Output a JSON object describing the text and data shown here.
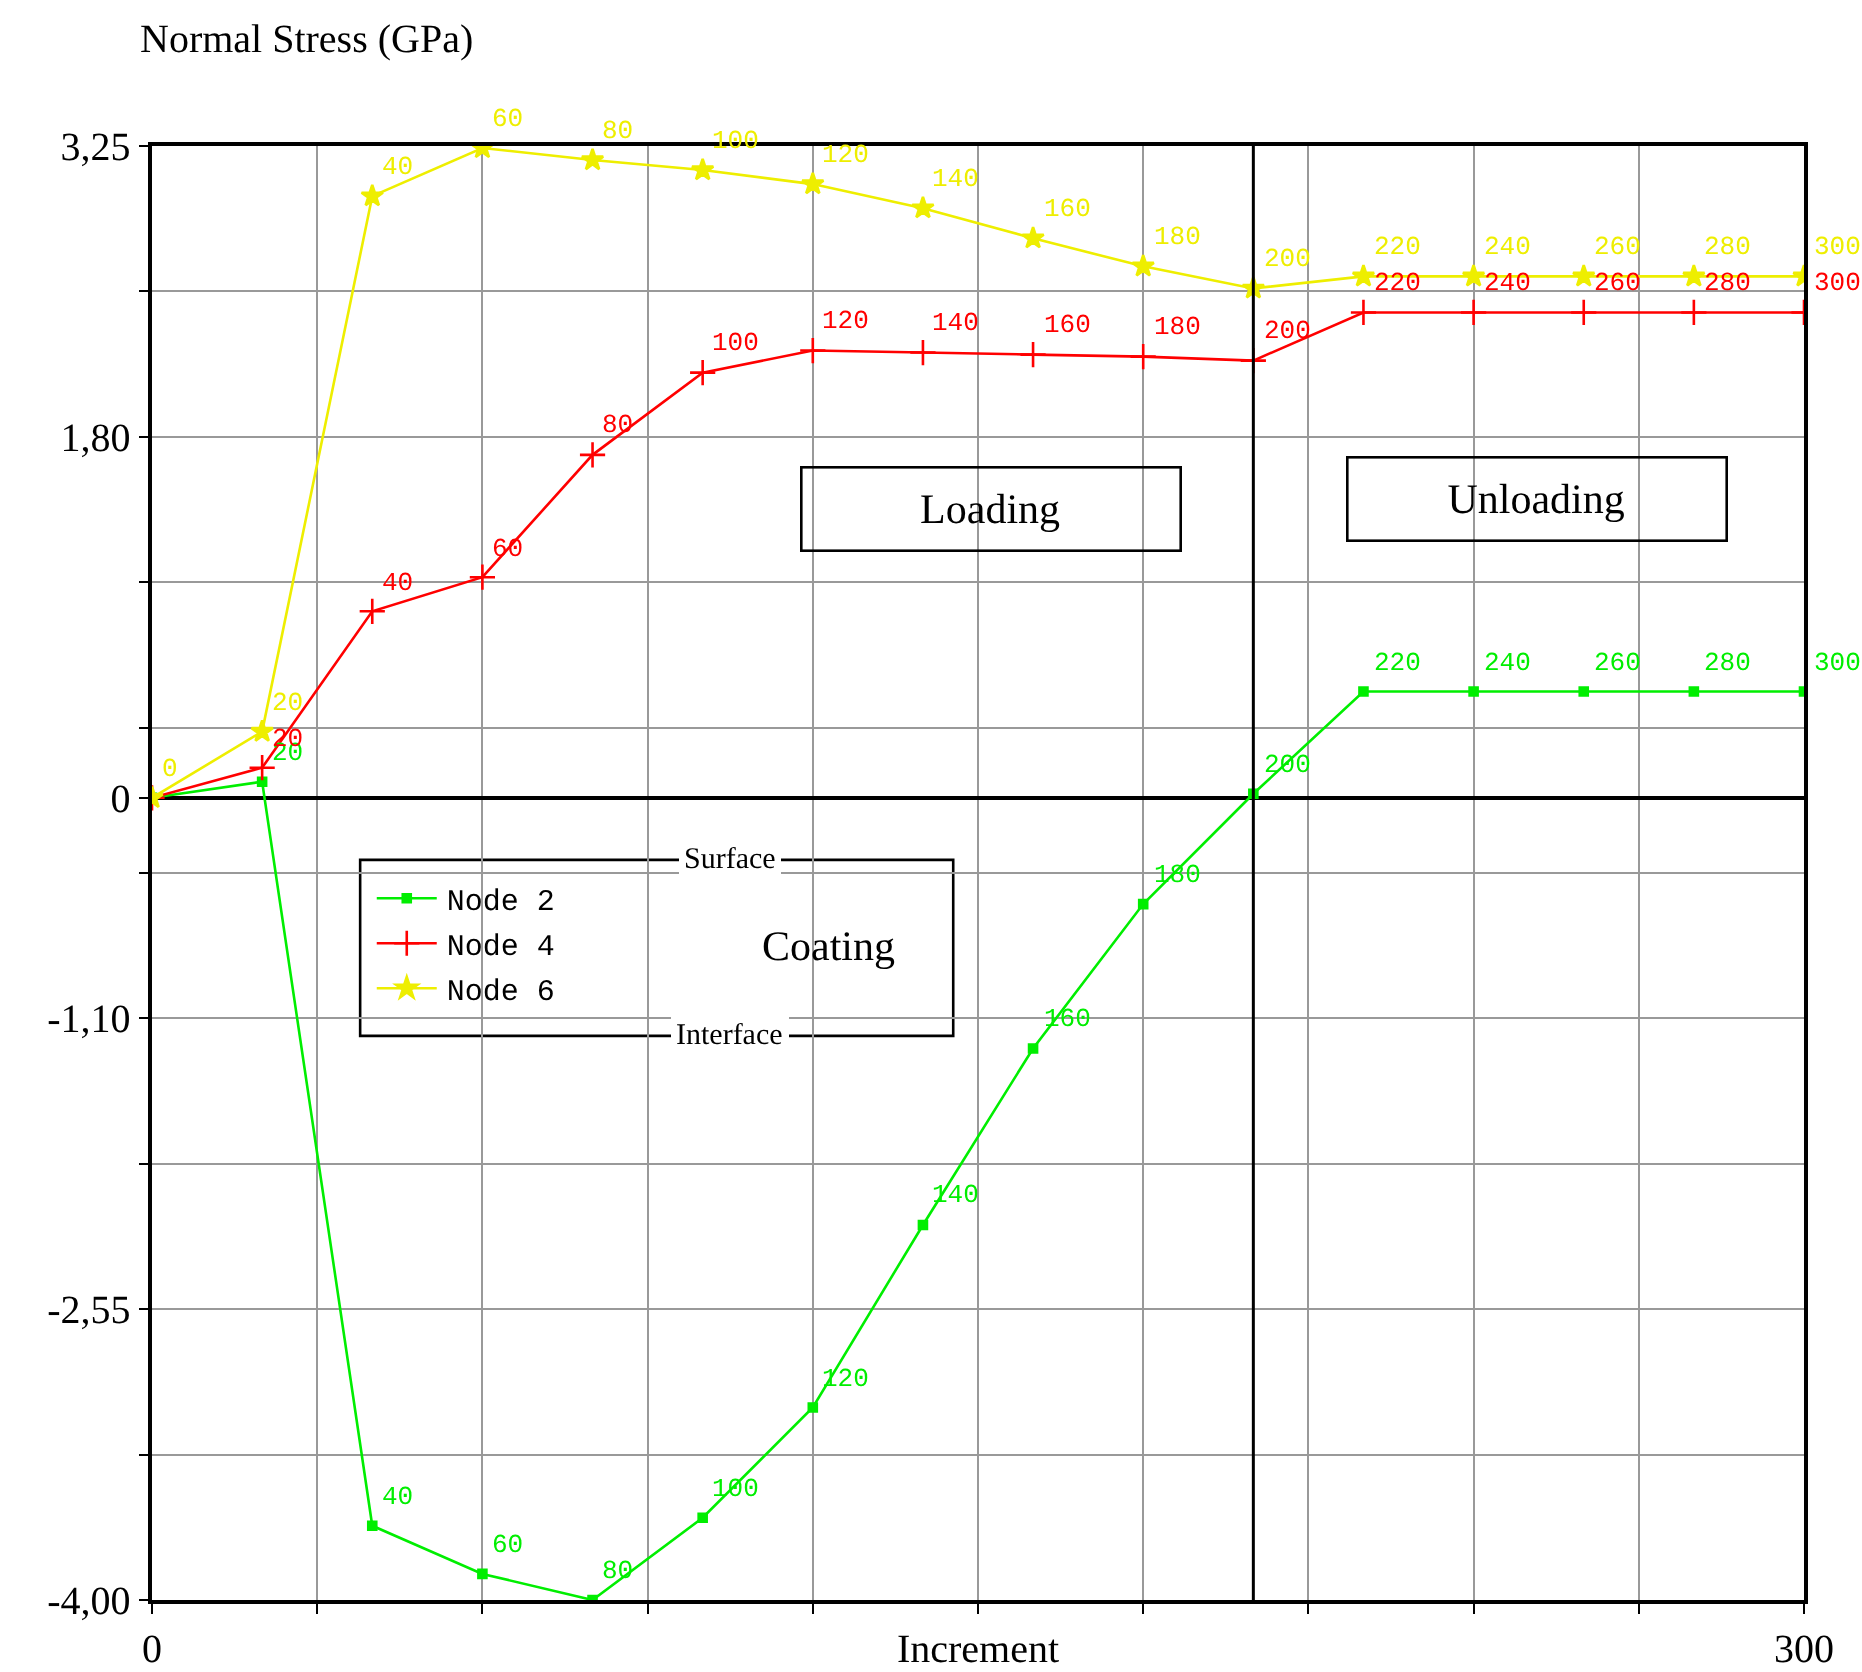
{
  "chart_data": {
    "type": "line",
    "ylabel": "Normal Stress (GPa)",
    "xlabel": "Increment",
    "x": [
      0,
      20,
      40,
      60,
      80,
      100,
      120,
      140,
      160,
      180,
      200,
      220,
      240,
      260,
      280,
      300
    ],
    "series": [
      {
        "name": "Node 2",
        "color": "#00ee00",
        "marker": "square",
        "values": [
          0,
          0.08,
          -3.63,
          -3.87,
          -4.0,
          -3.59,
          -3.04,
          -2.13,
          -1.25,
          -0.53,
          0.02,
          0.53,
          0.53,
          0.53,
          0.53,
          0.53
        ]
      },
      {
        "name": "Node 4",
        "color": "#ff0000",
        "marker": "cross",
        "values": [
          0,
          0.15,
          0.93,
          1.1,
          1.71,
          2.12,
          2.23,
          2.22,
          2.21,
          2.2,
          2.18,
          2.42,
          2.42,
          2.42,
          2.42,
          2.42
        ]
      },
      {
        "name": "Node 6",
        "color": "#eeee00",
        "marker": "star",
        "values": [
          0,
          0.33,
          3.0,
          3.24,
          3.18,
          3.13,
          3.06,
          2.94,
          2.79,
          2.65,
          2.54,
          2.6,
          2.6,
          2.6,
          2.6,
          2.6
        ]
      }
    ],
    "xlim": [
      0,
      300
    ],
    "xticks": [
      0,
      {
        "value": 30,
        "label": null
      },
      {
        "value": 60,
        "label": null
      },
      {
        "value": 90,
        "label": null
      },
      {
        "value": 120,
        "label": null
      },
      {
        "value": 150,
        "label": null
      },
      {
        "value": 180,
        "label": null
      },
      {
        "value": 210,
        "label": null
      },
      {
        "value": 240,
        "label": null
      },
      {
        "value": 270,
        "label": null
      },
      300
    ],
    "ylim": [
      -4,
      3.25
    ],
    "yticks": [
      {
        "value": -4,
        "label": "-4,00"
      },
      {
        "value": -3.275,
        "label": null
      },
      {
        "value": -2.55,
        "label": "-2,55"
      },
      {
        "value": -1.825,
        "label": null
      },
      {
        "value": -1.1,
        "label": "-1,10"
      },
      {
        "value": -0.375,
        "label": null
      },
      0,
      {
        "value": 0.35,
        "label": null
      },
      {
        "value": 1.075,
        "label": null
      },
      {
        "value": 1.8,
        "label": "1,80"
      },
      {
        "value": 2.525,
        "label": null
      },
      {
        "value": 3.25,
        "label": "3,25"
      }
    ],
    "ref_lines": [
      {
        "axis": "x",
        "value": 200,
        "color": "#000000"
      }
    ],
    "annotations": [
      "Loading",
      "Unloading",
      "Surface",
      "Coating",
      "Interface",
      {
        "text": "20",
        "x": 20,
        "y": 0.08
      },
      {
        "text": "40",
        "x": 40,
        "y": -3.63
      },
      {
        "text": "60",
        "x": 60,
        "y": -3.87
      },
      {
        "text": "80",
        "x": 80,
        "y": -4.0
      },
      {
        "text": "100",
        "x": 100,
        "y": -3.59
      },
      {
        "text": "120",
        "x": 120,
        "y": -3.04
      },
      {
        "text": "140",
        "x": 140,
        "y": -2.13
      },
      {
        "text": "160",
        "x": 160,
        "y": -1.25
      },
      {
        "text": "180",
        "x": 180,
        "y": -0.53
      },
      {
        "text": "200",
        "x": 200,
        "y": 0.02
      },
      {
        "text": "220",
        "x": 220,
        "y": 0.53
      },
      {
        "text": "240",
        "x": 240,
        "y": 0.53
      },
      {
        "text": "260",
        "x": 260,
        "y": 0.53
      },
      {
        "text": "280",
        "x": 280,
        "y": 0.53
      },
      {
        "text": "300",
        "x": 300,
        "y": 0.53
      },
      {
        "text": "20",
        "x": 20,
        "y": 0.15
      },
      {
        "text": "40",
        "x": 40,
        "y": 0.93
      },
      {
        "text": "60",
        "x": 60,
        "y": 1.1
      },
      {
        "text": "80",
        "x": 80,
        "y": 1.71
      },
      {
        "text": "100",
        "x": 100,
        "y": 2.12
      },
      {
        "text": "120",
        "x": 120,
        "y": 2.23
      },
      {
        "text": "140",
        "x": 140,
        "y": 2.22
      },
      {
        "text": "160",
        "x": 160,
        "y": 2.21
      },
      {
        "text": "180",
        "x": 180,
        "y": 2.2
      },
      {
        "text": "200",
        "x": 200,
        "y": 2.18
      },
      {
        "text": "220",
        "x": 220,
        "y": 2.42
      },
      {
        "text": "240",
        "x": 240,
        "y": 2.42
      },
      {
        "text": "260",
        "x": 260,
        "y": 2.42
      },
      {
        "text": "280",
        "x": 280,
        "y": 2.42
      },
      {
        "text": "300",
        "x": 300,
        "y": 2.42
      },
      {
        "text": "0",
        "x": 0,
        "y": 0
      },
      {
        "text": "20",
        "x": 20,
        "y": 0.33
      },
      {
        "text": "40",
        "x": 40,
        "y": 3.0
      },
      {
        "text": "60",
        "x": 60,
        "y": 3.24
      },
      {
        "text": "80",
        "x": 80,
        "y": 3.18
      },
      {
        "text": "100",
        "x": 100,
        "y": 3.13
      },
      {
        "text": "120",
        "x": 120,
        "y": 3.06
      },
      {
        "text": "140",
        "x": 140,
        "y": 2.94
      },
      {
        "text": "160",
        "x": 160,
        "y": 2.79
      },
      {
        "text": "180",
        "x": 180,
        "y": 2.65
      },
      {
        "text": "200",
        "x": 200,
        "y": 2.54
      },
      {
        "text": "220",
        "x": 220,
        "y": 2.6
      },
      {
        "text": "240",
        "x": 240,
        "y": 2.6
      },
      {
        "text": "260",
        "x": 260,
        "y": 2.6
      },
      {
        "text": "280",
        "x": 280,
        "y": 2.6
      },
      {
        "text": "300",
        "x": 300,
        "y": 2.6
      }
    ],
    "grid": true,
    "legend": "left",
    "line_style": "solid"
  }
}
